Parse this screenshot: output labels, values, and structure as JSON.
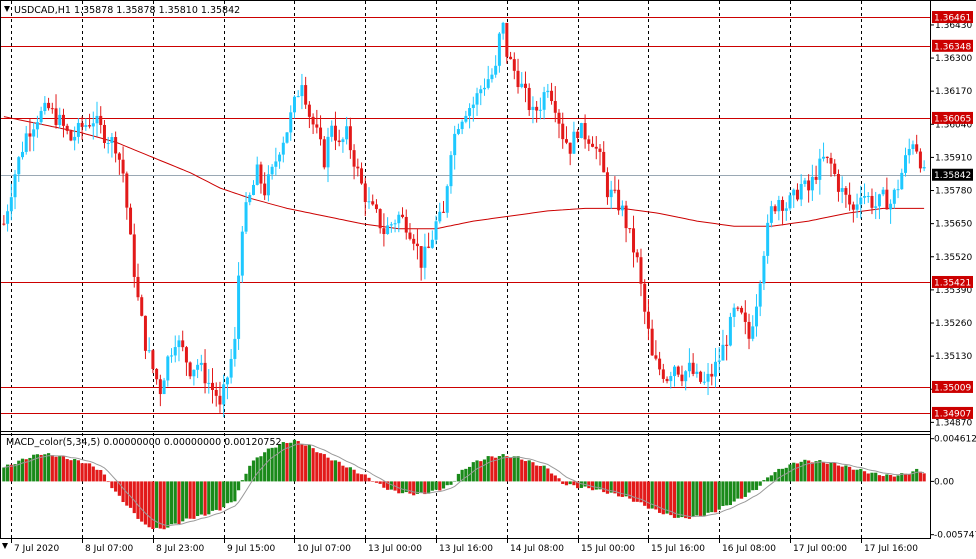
{
  "header": {
    "symbol_line": "USDCAD,H1  1.35878 1.35878 1.35810 1.35842",
    "macd_line": "MACD_color(5,34,5) 0.00000000 0.00000000 0.00120752"
  },
  "colors": {
    "bull": "#1ec8ff",
    "bear": "#e21919",
    "level_line": "#cc0000",
    "ma_line": "#cc0000",
    "macd_up": "#1a8a1a",
    "macd_down": "#e21919",
    "price_tag_bg": "#000000",
    "grid": "#000000"
  },
  "chart_data": [
    {
      "type": "candlestick",
      "symbol": "USDCAD",
      "timeframe": "H1",
      "ylim": [
        1.3484,
        1.3652
      ],
      "y_ticks": [
        "1.36430",
        "1.36300",
        "1.36170",
        "1.36040",
        "1.35910",
        "1.35780",
        "1.35650",
        "1.35520",
        "1.35390",
        "1.35260",
        "1.35130",
        "1.35000",
        "1.34870"
      ],
      "x_ticks": [
        "7 Jul 2020",
        "8 Jul 07:00",
        "8 Jul 23:00",
        "9 Jul 15:00",
        "10 Jul 07:00",
        "13 Jul 00:00",
        "13 Jul 16:00",
        "14 Jul 08:00",
        "15 Jul 00:00",
        "15 Jul 16:00",
        "16 Jul 08:00",
        "17 Jul 00:00",
        "17 Jul 16:00"
      ],
      "levels": [
        "1.36461",
        "1.36348",
        "1.36065",
        "1.35421",
        "1.35009",
        "1.34907"
      ],
      "current_price": "1.35842",
      "waypoints": [
        [
          0,
          1.3565
        ],
        [
          3,
          1.3585
        ],
        [
          6,
          1.36
        ],
        [
          9,
          1.3607
        ],
        [
          12,
          1.361
        ],
        [
          15,
          1.3605
        ],
        [
          18,
          1.3598
        ],
        [
          21,
          1.3603
        ],
        [
          24,
          1.3606
        ],
        [
          27,
          1.36
        ],
        [
          30,
          1.3596
        ],
        [
          32,
          1.3585
        ],
        [
          34,
          1.3558
        ],
        [
          36,
          1.3535
        ],
        [
          38,
          1.3518
        ],
        [
          40,
          1.3508
        ],
        [
          42,
          1.35
        ],
        [
          44,
          1.3512
        ],
        [
          46,
          1.352
        ],
        [
          48,
          1.3515
        ],
        [
          50,
          1.3508
        ],
        [
          52,
          1.351
        ],
        [
          54,
          1.3505
        ],
        [
          56,
          1.35
        ],
        [
          57,
          1.3498
        ],
        [
          58,
          1.3492
        ],
        [
          60,
          1.3505
        ],
        [
          62,
          1.3518
        ],
        [
          63,
          1.3545
        ],
        [
          64,
          1.3565
        ],
        [
          66,
          1.3575
        ],
        [
          68,
          1.3585
        ],
        [
          70,
          1.3578
        ],
        [
          72,
          1.3585
        ],
        [
          74,
          1.3595
        ],
        [
          76,
          1.3602
        ],
        [
          78,
          1.3612
        ],
        [
          80,
          1.3622
        ],
        [
          82,
          1.3608
        ],
        [
          84,
          1.36
        ],
        [
          86,
          1.359
        ],
        [
          88,
          1.3605
        ],
        [
          90,
          1.3595
        ],
        [
          92,
          1.36
        ],
        [
          94,
          1.359
        ],
        [
          96,
          1.358
        ],
        [
          98,
          1.3572
        ],
        [
          100,
          1.3568
        ],
        [
          102,
          1.3562
        ],
        [
          104,
          1.3565
        ],
        [
          106,
          1.3568
        ],
        [
          108,
          1.3565
        ],
        [
          110,
          1.356
        ],
        [
          112,
          1.355
        ],
        [
          114,
          1.3555
        ],
        [
          116,
          1.3565
        ],
        [
          118,
          1.3568
        ],
        [
          120,
          1.3595
        ],
        [
          122,
          1.3605
        ],
        [
          124,
          1.361
        ],
        [
          126,
          1.3612
        ],
        [
          128,
          1.3618
        ],
        [
          130,
          1.3622
        ],
        [
          132,
          1.3625
        ],
        [
          133,
          1.3638
        ],
        [
          134,
          1.3642
        ],
        [
          135,
          1.3632
        ],
        [
          136,
          1.3628
        ],
        [
          138,
          1.3622
        ],
        [
          140,
          1.3615
        ],
        [
          142,
          1.3608
        ],
        [
          144,
          1.3612
        ],
        [
          146,
          1.362
        ],
        [
          148,
          1.3612
        ],
        [
          150,
          1.36
        ],
        [
          152,
          1.3595
        ],
        [
          154,
          1.3602
        ],
        [
          156,
          1.36
        ],
        [
          158,
          1.3598
        ],
        [
          160,
          1.359
        ],
        [
          162,
          1.3578
        ],
        [
          164,
          1.3575
        ],
        [
          166,
          1.357
        ],
        [
          168,
          1.356
        ],
        [
          170,
          1.355
        ],
        [
          172,
          1.353
        ],
        [
          173,
          1.3522
        ],
        [
          174,
          1.3512
        ],
        [
          176,
          1.3508
        ],
        [
          178,
          1.3505
        ],
        [
          180,
          1.351
        ],
        [
          182,
          1.3506
        ],
        [
          184,
          1.3508
        ],
        [
          186,
          1.3504
        ],
        [
          188,
          1.3502
        ],
        [
          190,
          1.3506
        ],
        [
          192,
          1.3512
        ],
        [
          194,
          1.352
        ],
        [
          196,
          1.353
        ],
        [
          198,
          1.3528
        ],
        [
          200,
          1.352
        ],
        [
          202,
          1.3535
        ],
        [
          204,
          1.3555
        ],
        [
          206,
          1.357
        ],
        [
          208,
          1.3575
        ],
        [
          210,
          1.3572
        ],
        [
          212,
          1.3575
        ],
        [
          214,
          1.358
        ],
        [
          216,
          1.3578
        ],
        [
          218,
          1.3585
        ],
        [
          220,
          1.359
        ],
        [
          222,
          1.3588
        ],
        [
          224,
          1.358
        ],
        [
          226,
          1.3575
        ],
        [
          228,
          1.357
        ],
        [
          230,
          1.3578
        ],
        [
          232,
          1.3575
        ],
        [
          234,
          1.3572
        ],
        [
          236,
          1.3575
        ],
        [
          238,
          1.3573
        ],
        [
          240,
          1.358
        ],
        [
          242,
          1.359
        ],
        [
          244,
          1.3598
        ],
        [
          245,
          1.3595
        ],
        [
          246,
          1.359
        ],
        [
          247,
          1.3584
        ]
      ],
      "ma_waypoints": [
        [
          0,
          1.3607
        ],
        [
          10,
          1.3604
        ],
        [
          20,
          1.3601
        ],
        [
          30,
          1.3597
        ],
        [
          40,
          1.3591
        ],
        [
          50,
          1.3585
        ],
        [
          58,
          1.3579
        ],
        [
          66,
          1.3575
        ],
        [
          76,
          1.3571
        ],
        [
          86,
          1.3568
        ],
        [
          96,
          1.3565
        ],
        [
          106,
          1.3563
        ],
        [
          116,
          1.3563
        ],
        [
          126,
          1.3566
        ],
        [
          136,
          1.3568
        ],
        [
          146,
          1.357
        ],
        [
          156,
          1.3571
        ],
        [
          166,
          1.3571
        ],
        [
          176,
          1.3569
        ],
        [
          186,
          1.3566
        ],
        [
          196,
          1.3564
        ],
        [
          206,
          1.3564
        ],
        [
          216,
          1.3566
        ],
        [
          226,
          1.3569
        ],
        [
          236,
          1.3571
        ],
        [
          247,
          1.3571
        ]
      ]
    },
    {
      "type": "histogram",
      "name": "MACD_color(5,34,5)",
      "ylim": [
        -0.006,
        0.0049
      ],
      "y_ticks": [
        "0.0046124",
        "0.00",
        "-0.005747"
      ],
      "waypoints": [
        [
          0,
          0.0015
        ],
        [
          6,
          0.0025
        ],
        [
          10,
          0.003
        ],
        [
          14,
          0.0028
        ],
        [
          18,
          0.0024
        ],
        [
          22,
          0.002
        ],
        [
          26,
          0.0012
        ],
        [
          28,
          0.0
        ],
        [
          30,
          -0.0012
        ],
        [
          34,
          -0.003
        ],
        [
          38,
          -0.0048
        ],
        [
          42,
          -0.0052
        ],
        [
          46,
          -0.0046
        ],
        [
          50,
          -0.004
        ],
        [
          54,
          -0.0036
        ],
        [
          58,
          -0.003
        ],
        [
          62,
          -0.002
        ],
        [
          64,
          0.0
        ],
        [
          66,
          0.0018
        ],
        [
          70,
          0.0032
        ],
        [
          74,
          0.004
        ],
        [
          78,
          0.0044
        ],
        [
          82,
          0.0038
        ],
        [
          86,
          0.0028
        ],
        [
          90,
          0.002
        ],
        [
          94,
          0.0012
        ],
        [
          98,
          0.0004
        ],
        [
          100,
          -0.0002
        ],
        [
          104,
          -0.001
        ],
        [
          108,
          -0.0013
        ],
        [
          112,
          -0.0014
        ],
        [
          116,
          -0.001
        ],
        [
          120,
          -0.0004
        ],
        [
          122,
          0.0008
        ],
        [
          126,
          0.002
        ],
        [
          130,
          0.0026
        ],
        [
          134,
          0.0028
        ],
        [
          138,
          0.0026
        ],
        [
          142,
          0.002
        ],
        [
          146,
          0.0014
        ],
        [
          148,
          0.0006
        ],
        [
          150,
          -0.0002
        ],
        [
          154,
          -0.0006
        ],
        [
          158,
          -0.0008
        ],
        [
          162,
          -0.0012
        ],
        [
          166,
          -0.0016
        ],
        [
          170,
          -0.0022
        ],
        [
          174,
          -0.003
        ],
        [
          178,
          -0.0036
        ],
        [
          182,
          -0.004
        ],
        [
          186,
          -0.0038
        ],
        [
          190,
          -0.0034
        ],
        [
          194,
          -0.0026
        ],
        [
          198,
          -0.0018
        ],
        [
          202,
          -0.0008
        ],
        [
          204,
          0.0
        ],
        [
          206,
          0.0008
        ],
        [
          210,
          0.0016
        ],
        [
          214,
          0.0022
        ],
        [
          218,
          0.0022
        ],
        [
          222,
          0.002
        ],
        [
          226,
          0.0016
        ],
        [
          230,
          0.0012
        ],
        [
          234,
          0.0008
        ],
        [
          238,
          0.0006
        ],
        [
          242,
          0.0008
        ],
        [
          245,
          0.0012
        ],
        [
          247,
          0.001
        ]
      ]
    }
  ]
}
